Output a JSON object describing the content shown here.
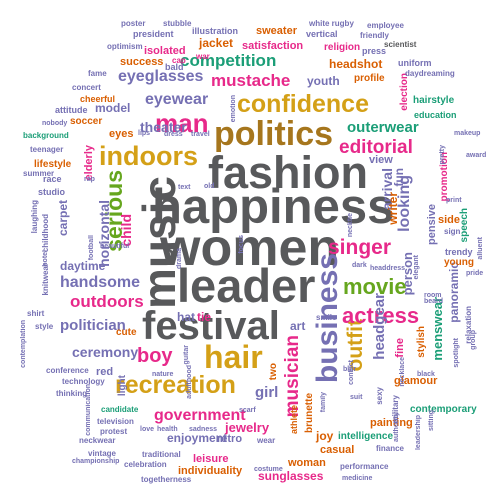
{
  "colors": {
    "gray": "#58595b",
    "gold": "#d4a017",
    "brown": "#a6761d",
    "green": "#66a61e",
    "purple": "#7570b3",
    "pink": "#e7298a",
    "orange": "#d95f02",
    "teal": "#1b9e77"
  },
  "words": [
    {
      "text": "women",
      "color": "gray"
    },
    {
      "text": "happiness",
      "color": "gray"
    },
    {
      "text": "fashion",
      "color": "gray"
    },
    {
      "text": "leader",
      "color": "gray"
    },
    {
      "text": "festival",
      "color": "gray"
    },
    {
      "text": "music",
      "color": "gray"
    },
    {
      "text": "politics",
      "color": "brown"
    },
    {
      "text": "business",
      "color": "purple"
    },
    {
      "text": "confidence",
      "color": "gold"
    },
    {
      "text": "indoors",
      "color": "gold"
    },
    {
      "text": "recreation",
      "color": "gold"
    },
    {
      "text": "hair",
      "color": "gold"
    },
    {
      "text": "man",
      "color": "pink"
    },
    {
      "text": "movie",
      "color": "green"
    },
    {
      "text": "serious",
      "color": "green"
    },
    {
      "text": "outfit",
      "color": "gold"
    },
    {
      "text": "actress",
      "color": "pink"
    },
    {
      "text": "singer",
      "color": "pink"
    },
    {
      "text": "musician",
      "color": "pink"
    },
    {
      "text": "boy",
      "color": "pink"
    },
    {
      "text": "government",
      "color": "pink"
    },
    {
      "text": "editorial",
      "color": "pink"
    },
    {
      "text": "mustache",
      "color": "pink"
    },
    {
      "text": "competition",
      "color": "teal"
    },
    {
      "text": "eyeglasses",
      "color": "purple"
    },
    {
      "text": "eyewear",
      "color": "purple"
    },
    {
      "text": "outdoors",
      "color": "pink"
    },
    {
      "text": "handsome",
      "color": "purple"
    },
    {
      "text": "politician",
      "color": "purple"
    },
    {
      "text": "outerwear",
      "color": "teal"
    },
    {
      "text": "headgear",
      "color": "purple"
    },
    {
      "text": "looking",
      "color": "purple"
    },
    {
      "text": "ceremony",
      "color": "purple"
    },
    {
      "text": "horizontal",
      "color": "purple"
    },
    {
      "text": "girl",
      "color": "purple"
    },
    {
      "text": "theater",
      "color": "purple"
    },
    {
      "text": "child",
      "color": "pink"
    },
    {
      "text": "arrival",
      "color": "purple"
    },
    {
      "text": "menswear",
      "color": "teal"
    },
    {
      "text": "panoramic",
      "color": "purple"
    },
    {
      "text": "person",
      "color": "purple"
    },
    {
      "text": "pensive",
      "color": "purple"
    },
    {
      "text": "writer",
      "color": "orange"
    },
    {
      "text": "elderly",
      "color": "pink"
    },
    {
      "text": "carpet",
      "color": "purple"
    },
    {
      "text": "daytime",
      "color": "purple"
    },
    {
      "text": "jewelry",
      "color": "pink"
    },
    {
      "text": "enjoyment",
      "color": "purple"
    },
    {
      "text": "leisure",
      "color": "pink"
    },
    {
      "text": "individuality",
      "color": "orange"
    },
    {
      "text": "sunglasses",
      "color": "pink"
    },
    {
      "text": "woman",
      "color": "orange"
    },
    {
      "text": "casual",
      "color": "orange"
    },
    {
      "text": "glamour",
      "color": "orange"
    },
    {
      "text": "painting",
      "color": "orange"
    },
    {
      "text": "sweater",
      "color": "orange"
    },
    {
      "text": "jacket",
      "color": "orange"
    },
    {
      "text": "isolated",
      "color": "pink"
    },
    {
      "text": "satisfaction",
      "color": "pink"
    },
    {
      "text": "success",
      "color": "orange"
    },
    {
      "text": "headshot",
      "color": "orange"
    },
    {
      "text": "youth",
      "color": "purple"
    },
    {
      "text": "model",
      "color": "purple"
    },
    {
      "text": "hat",
      "color": "purple"
    },
    {
      "text": "tie",
      "color": "pink"
    },
    {
      "text": "fun",
      "color": "purple"
    },
    {
      "text": "joy",
      "color": "orange"
    },
    {
      "text": "art",
      "color": "purple"
    },
    {
      "text": "red",
      "color": "purple"
    },
    {
      "text": "fine",
      "color": "pink"
    },
    {
      "text": "light",
      "color": "purple"
    },
    {
      "text": "retro",
      "color": "purple"
    },
    {
      "text": "eyes",
      "color": "orange"
    },
    {
      "text": "cute",
      "color": "orange"
    },
    {
      "text": "two",
      "color": "orange"
    },
    {
      "text": "view",
      "color": "purple"
    },
    {
      "text": "side",
      "color": "orange"
    },
    {
      "text": "young",
      "color": "orange"
    },
    {
      "text": "stylish",
      "color": "orange"
    },
    {
      "text": "brunette",
      "color": "orange"
    },
    {
      "text": "athlete",
      "color": "orange"
    },
    {
      "text": "lifestyle",
      "color": "orange"
    },
    {
      "text": "soccer",
      "color": "orange"
    },
    {
      "text": "intelligence",
      "color": "teal"
    },
    {
      "text": "contemporary",
      "color": "teal"
    },
    {
      "text": "election",
      "color": "pink"
    },
    {
      "text": "promotion",
      "color": "pink"
    },
    {
      "text": "trendy",
      "color": "purple"
    },
    {
      "text": "speech",
      "color": "teal"
    },
    {
      "text": "hairstyle",
      "color": "teal"
    },
    {
      "text": "education",
      "color": "teal"
    },
    {
      "text": "profile",
      "color": "orange"
    },
    {
      "text": "religion",
      "color": "pink"
    },
    {
      "text": "press",
      "color": "purple"
    },
    {
      "text": "uniform",
      "color": "purple"
    },
    {
      "text": "daydreaming",
      "color": "purple"
    },
    {
      "text": "scientist",
      "color": "gray"
    },
    {
      "text": "employee",
      "color": "purple"
    },
    {
      "text": "friendly",
      "color": "purple"
    },
    {
      "text": "white rugby",
      "color": "purple"
    },
    {
      "text": "vertical",
      "color": "purple"
    },
    {
      "text": "president",
      "color": "purple"
    },
    {
      "text": "illustration",
      "color": "purple"
    },
    {
      "text": "stubble",
      "color": "purple"
    },
    {
      "text": "poster",
      "color": "purple"
    },
    {
      "text": "optimism",
      "color": "purple"
    },
    {
      "text": "cap",
      "color": "pink"
    },
    {
      "text": "bald",
      "color": "purple"
    },
    {
      "text": "war",
      "color": "pink"
    },
    {
      "text": "fame",
      "color": "purple"
    },
    {
      "text": "concert",
      "color": "purple"
    },
    {
      "text": "cheerful",
      "color": "orange"
    },
    {
      "text": "attitude",
      "color": "purple"
    },
    {
      "text": "nobody",
      "color": "purple"
    },
    {
      "text": "background",
      "color": "teal"
    },
    {
      "text": "teenager",
      "color": "purple"
    },
    {
      "text": "summer",
      "color": "purple"
    },
    {
      "text": "race",
      "color": "purple"
    },
    {
      "text": "studio",
      "color": "purple"
    },
    {
      "text": "laughing",
      "color": "purple"
    },
    {
      "text": "childhood",
      "color": "purple"
    },
    {
      "text": "hotel",
      "color": "purple"
    },
    {
      "text": "knitwear",
      "color": "purple"
    },
    {
      "text": "shirt",
      "color": "purple"
    },
    {
      "text": "style",
      "color": "purple"
    },
    {
      "text": "contemplation",
      "color": "purple"
    },
    {
      "text": "conference",
      "color": "purple"
    },
    {
      "text": "technology",
      "color": "purple"
    },
    {
      "text": "thinking",
      "color": "purple"
    },
    {
      "text": "candidate",
      "color": "teal"
    },
    {
      "text": "television",
      "color": "purple"
    },
    {
      "text": "protest",
      "color": "purple"
    },
    {
      "text": "neckwear",
      "color": "purple"
    },
    {
      "text": "vintage",
      "color": "purple"
    },
    {
      "text": "championship",
      "color": "purple"
    },
    {
      "text": "togetherness",
      "color": "purple"
    },
    {
      "text": "celebration",
      "color": "purple"
    },
    {
      "text": "traditional",
      "color": "purple"
    },
    {
      "text": "love",
      "color": "purple"
    },
    {
      "text": "health",
      "color": "purple"
    },
    {
      "text": "sadness",
      "color": "purple"
    },
    {
      "text": "costume",
      "color": "purple"
    },
    {
      "text": "wear",
      "color": "purple"
    },
    {
      "text": "performance",
      "color": "purple"
    },
    {
      "text": "medicine",
      "color": "purple"
    },
    {
      "text": "finance",
      "color": "purple"
    },
    {
      "text": "leadership",
      "color": "purple"
    },
    {
      "text": "military",
      "color": "purple"
    },
    {
      "text": "sexy",
      "color": "purple"
    },
    {
      "text": "award",
      "color": "purple"
    },
    {
      "text": "makeup",
      "color": "purple"
    },
    {
      "text": "pretty",
      "color": "purple"
    },
    {
      "text": "print",
      "color": "purple"
    },
    {
      "text": "sign",
      "color": "purple"
    },
    {
      "text": "pride",
      "color": "purple"
    },
    {
      "text": "beard",
      "color": "purple"
    },
    {
      "text": "room",
      "color": "purple"
    },
    {
      "text": "relaxation",
      "color": "purple"
    },
    {
      "text": "group",
      "color": "purple"
    },
    {
      "text": "spotlight",
      "color": "purple"
    },
    {
      "text": "necktie",
      "color": "purple"
    },
    {
      "text": "smile",
      "color": "purple"
    },
    {
      "text": "blur",
      "color": "purple"
    },
    {
      "text": "suit",
      "color": "purple"
    },
    {
      "text": "scarf",
      "color": "purple"
    },
    {
      "text": "old",
      "color": "purple"
    },
    {
      "text": "text",
      "color": "purple"
    },
    {
      "text": "dress",
      "color": "purple"
    },
    {
      "text": "travel",
      "color": "purple"
    },
    {
      "text": "beautiful",
      "color": "purple"
    },
    {
      "text": "football",
      "color": "purple"
    },
    {
      "text": "nature",
      "color": "purple"
    },
    {
      "text": "adulthood",
      "color": "purple"
    },
    {
      "text": "communication",
      "color": "purple"
    },
    {
      "text": "dark",
      "color": "purple"
    },
    {
      "text": "headdress",
      "color": "purple"
    },
    {
      "text": "necklace",
      "color": "purple"
    },
    {
      "text": "conflict",
      "color": "purple"
    },
    {
      "text": "family",
      "color": "purple"
    },
    {
      "text": "rap",
      "color": "purple"
    },
    {
      "text": "lips",
      "color": "purple"
    },
    {
      "text": "emotion",
      "color": "purple"
    },
    {
      "text": "black",
      "color": "purple"
    },
    {
      "text": "elegant",
      "color": "purple"
    },
    {
      "text": "alluent",
      "color": "purple"
    },
    {
      "text": "authority",
      "color": "purple"
    },
    {
      "text": "guitar",
      "color": "purple"
    },
    {
      "text": "sitting",
      "color": "purple"
    },
    {
      "text": "focus",
      "color": "purple"
    },
    {
      "text": "drama",
      "color": "purple"
    }
  ]
}
